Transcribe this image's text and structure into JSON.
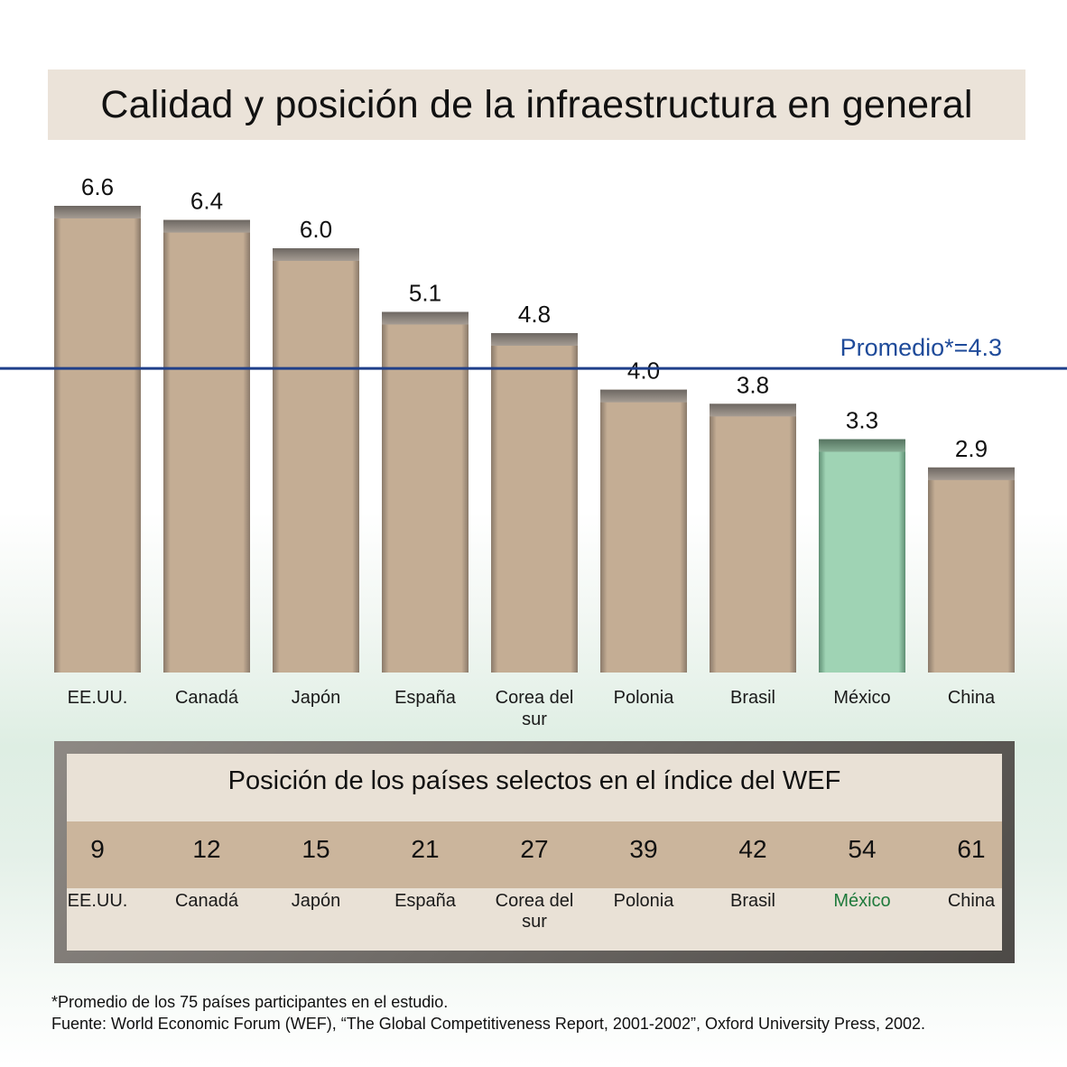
{
  "title": "Calidad y posición de la infraestructura en general",
  "chart_data": {
    "type": "bar",
    "title": "Calidad y posición de la infraestructura en general",
    "categories": [
      "EE.UU.",
      "Canadá",
      "Japón",
      "España",
      "Corea del sur",
      "Polonia",
      "Brasil",
      "México",
      "China"
    ],
    "label_lines": [
      [
        "EE.UU."
      ],
      [
        "Canadá"
      ],
      [
        "Japón"
      ],
      [
        "España"
      ],
      [
        "Corea del",
        "sur"
      ],
      [
        "Polonia"
      ],
      [
        "Brasil"
      ],
      [
        "México"
      ],
      [
        "China"
      ]
    ],
    "values": [
      6.6,
      6.4,
      6.0,
      5.1,
      4.8,
      4.0,
      3.8,
      3.3,
      2.9
    ],
    "value_labels": [
      "6.6",
      "6.4",
      "6.0",
      "5.1",
      "4.8",
      "4.0",
      "3.8",
      "3.3",
      "2.9"
    ],
    "highlight": "México",
    "average": {
      "value": 4.3,
      "label": "Promedio*=4.3"
    },
    "ylim": [
      0,
      6.6
    ],
    "colors": {
      "bar": "#c4ad94",
      "bar_highlight": "#9fd3b4",
      "average_line": "#1f3f8a",
      "highlight_text": "#1f7a3c"
    }
  },
  "ranking": {
    "title": "Posición de los países selectos en el índice del WEF",
    "ranks": [
      "9",
      "12",
      "15",
      "21",
      "27",
      "39",
      "42",
      "54",
      "61"
    ],
    "countries": [
      [
        "EE.UU."
      ],
      [
        "Canadá"
      ],
      [
        "Japón"
      ],
      [
        "España"
      ],
      [
        "Corea del",
        "sur"
      ],
      [
        "Polonia"
      ],
      [
        "Brasil"
      ],
      [
        "México"
      ],
      [
        "China"
      ]
    ]
  },
  "footnotes": {
    "note": "*Promedio de los 75 países participantes en el estudio.",
    "source": "Fuente: World Economic Forum (WEF), “The Global Competitiveness Report, 2001-2002”, Oxford University Press, 2002."
  }
}
